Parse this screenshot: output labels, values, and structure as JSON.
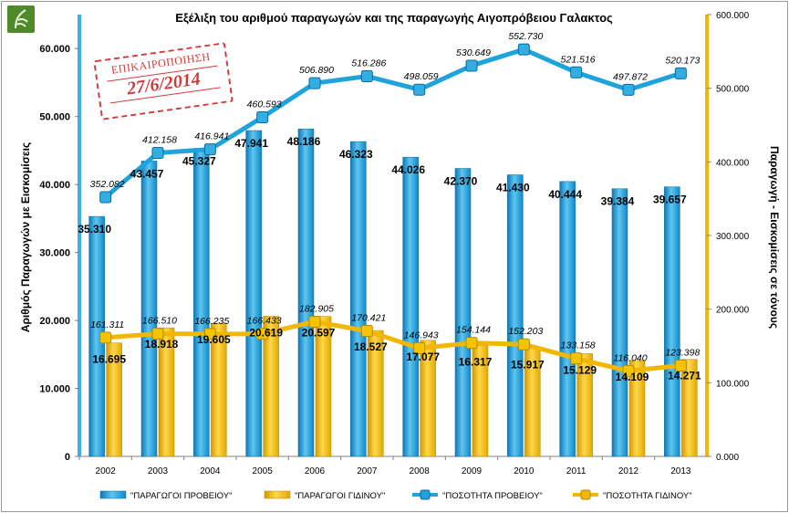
{
  "chart_data": {
    "type": "bar",
    "title": "Εξέλιξη του αριθμού παραγωγών και της παραγωγής Αιγοπρόβειου Γαλακτος",
    "categories": [
      "2002",
      "2003",
      "2004",
      "2005",
      "2006",
      "2007",
      "2008",
      "2009",
      "2010",
      "2011",
      "2012",
      "2013"
    ],
    "ylabel_left": "Αριθμός Παραγωγών με Εισκομίσεις",
    "ylabel_right": "Παραγωγή - Εισκομίσεις σε τόνους",
    "ylim_left": [
      0,
      65000
    ],
    "ylim_right": [
      0,
      600000
    ],
    "yticks_left": [
      "0",
      "10.000",
      "20.000",
      "30.000",
      "40.000",
      "50.000",
      "60.000"
    ],
    "yticks_right": [
      "0.000",
      "100.000",
      "200.000",
      "300.000",
      "400.000",
      "500.000",
      "600.000"
    ],
    "grid": false,
    "legend_position": "bottom",
    "series": [
      {
        "name": "\"ΠΑΡΑΓΩΓΟΙ ΠΡΟΒΕΙΟΥ\"",
        "kind": "bar",
        "axis": "left",
        "color": "#1fa3dc",
        "values": [
          35310,
          43457,
          45327,
          47941,
          48186,
          46323,
          44026,
          42370,
          41430,
          40444,
          39384,
          39657
        ],
        "labels": [
          "35.310",
          "43.457",
          "45.327",
          "47.941",
          "48.186",
          "46.323",
          "44.026",
          "42.370",
          "41.430",
          "40.444",
          "39.384",
          "39.657"
        ]
      },
      {
        "name": "\"ΠΑΡΑΓΩΓΟΙ ΓΙΔΙΝΟΥ\"",
        "kind": "bar",
        "axis": "left",
        "color": "#f2b705",
        "values": [
          16695,
          18918,
          19605,
          20619,
          20597,
          18527,
          17077,
          16317,
          15917,
          15129,
          14109,
          14271
        ],
        "labels": [
          "16.695",
          "18.918",
          "19.605",
          "20.619",
          "20.597",
          "18.527",
          "17.077",
          "16.317",
          "15.917",
          "15.129",
          "14.109",
          "14.271"
        ]
      },
      {
        "name": "\"ΠΟΣΟΤΗΤΑ ΠΡΟΒΕΙΟΥ\"",
        "kind": "line",
        "axis": "right",
        "color": "#1fa3dc",
        "values": [
          352082,
          412158,
          416941,
          460593,
          506890,
          516286,
          498059,
          530649,
          552730,
          521516,
          497872,
          520173
        ],
        "labels": [
          "352.082",
          "412.158",
          "416.941",
          "460.593",
          "506.890",
          "516.286",
          "498.059",
          "530.649",
          "552.730",
          "521.516",
          "497.872",
          "520.173"
        ]
      },
      {
        "name": "\"ΠΟΣΟΤΗΤΑ ΓΙΔΙΝΟΥ\"",
        "kind": "line",
        "axis": "right",
        "color": "#f2b705",
        "values": [
          161311,
          166510,
          166235,
          166433,
          182905,
          170421,
          146943,
          154144,
          152203,
          133158,
          116040,
          123398
        ],
        "labels": [
          "161.311",
          "166.510",
          "166.235",
          "166.433",
          "182.905",
          "170.421",
          "146.943",
          "154.144",
          "152.203",
          "133.158",
          "116.040",
          "123.398"
        ]
      }
    ]
  },
  "stamp": {
    "top_text": "ΕΠΙΚΑΙΡΟΠΟΙΗΣΗ",
    "date_text": "27/6/2014"
  },
  "colors": {
    "sheep": "#1fa3dc",
    "goat": "#f2b705",
    "stamp": "#d23a3a",
    "logo": "#4f8a2a"
  }
}
